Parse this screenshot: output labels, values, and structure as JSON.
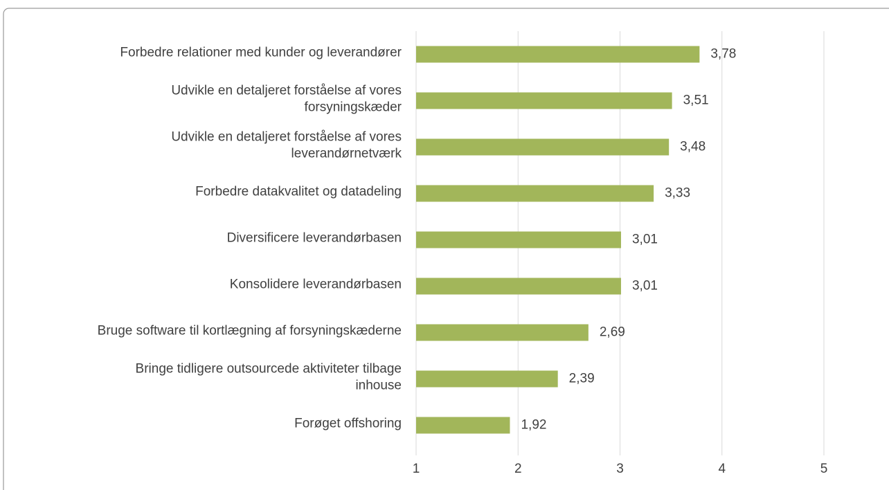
{
  "chart_data": {
    "type": "bar",
    "orientation": "horizontal",
    "categories": [
      "Forbedre relationer med kunder og leverandører",
      "Udvikle en detaljeret forståelse af vores forsyningskæder",
      "Udvikle en detaljeret forståelse af vores leverandørnetværk",
      "Forbedre datakvalitet og datadeling",
      "Diversificere leverandørbasen",
      "Konsolidere leverandørbasen",
      "Bruge software til kortlægning af forsyningskæderne",
      "Bringe tidligere outsourcede aktiviteter tilbage inhouse",
      "Forøget offshoring"
    ],
    "values": [
      3.78,
      3.51,
      3.48,
      3.33,
      3.01,
      3.01,
      2.69,
      2.39,
      1.92
    ],
    "value_labels": [
      "3,78",
      "3,51",
      "3,48",
      "3,33",
      "3,01",
      "3,01",
      "2,69",
      "2,39",
      "1,92"
    ],
    "color": "#a2b65a",
    "xlim": [
      1,
      5
    ],
    "xticks": [
      1,
      2,
      3,
      4,
      5
    ],
    "grid": true
  }
}
